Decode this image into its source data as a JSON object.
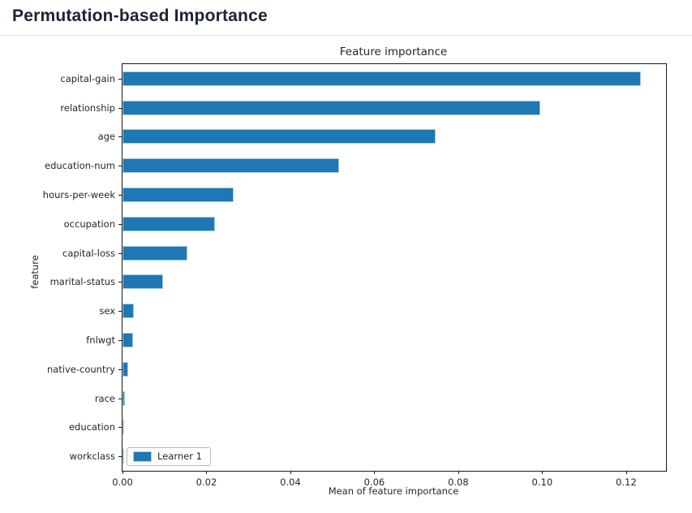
{
  "header": {
    "title": "Permutation-based Importance"
  },
  "chart_data": {
    "type": "bar",
    "orientation": "horizontal",
    "title": "Feature importance",
    "xlabel": "Mean of feature importance",
    "ylabel": "feature",
    "legend": [
      "Learner 1"
    ],
    "legend_position": "lower left",
    "categories": [
      "capital-gain",
      "relationship",
      "age",
      "education-num",
      "hours-per-week",
      "occupation",
      "capital-loss",
      "marital-status",
      "sex",
      "fnlwgt",
      "native-country",
      "race",
      "education",
      "workclass"
    ],
    "values": [
      0.1235,
      0.0996,
      0.0747,
      0.0516,
      0.0264,
      0.0221,
      0.0154,
      0.0097,
      0.0027,
      0.0025,
      0.0014,
      0.0005,
      0.0004,
      0.0002
    ],
    "xlim": [
      0,
      0.1295
    ],
    "xticks": [
      0.0,
      0.02,
      0.04,
      0.06,
      0.08,
      0.1,
      0.12
    ],
    "xtick_format": "0.00",
    "grid": false,
    "bar_color": "#1f77b4",
    "bar_edge_color": "#a9d0e8"
  }
}
